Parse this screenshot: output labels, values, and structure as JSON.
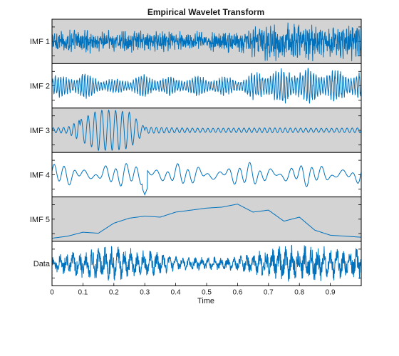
{
  "chart_data": {
    "type": "line",
    "title": "Empirical Wavelet Transform",
    "xlabel": "Time",
    "xlim": [
      0,
      1
    ],
    "xticks": [
      "0",
      "0.1",
      "0.2",
      "0.3",
      "0.4",
      "0.5",
      "0.6",
      "0.7",
      "0.8",
      "0.9"
    ],
    "grid": false,
    "legend": "none",
    "colors": {
      "line": "#0072BD",
      "shaded_background": "#D3D3D3",
      "plain_background": "#FFFFFF",
      "axes": "#000000"
    },
    "panels": [
      {
        "label": "IMF 1",
        "shaded": true,
        "description": "broadband high-frequency noise; amplitude larger after t=0.7",
        "x": [
          0,
          0.1,
          0.2,
          0.3,
          0.4,
          0.5,
          0.6,
          0.7,
          0.8,
          0.9,
          1.0
        ],
        "envelope": [
          0.55,
          0.6,
          0.55,
          0.55,
          0.5,
          0.5,
          0.55,
          0.95,
          1.0,
          0.9,
          0.9
        ]
      },
      {
        "label": "IMF 2",
        "shaded": false,
        "description": "high-frequency oscillation with beat-like amplitude bursts; strongest after t=0.7",
        "x": [
          0,
          0.1,
          0.2,
          0.3,
          0.4,
          0.5,
          0.6,
          0.7,
          0.8,
          0.9,
          1.0
        ],
        "envelope": [
          0.55,
          0.7,
          0.35,
          0.6,
          0.45,
          0.55,
          0.45,
          0.9,
          1.0,
          0.85,
          0.8
        ]
      },
      {
        "label": "IMF 3",
        "shaded": true,
        "description": "large burst between t=0.1 and t=0.3, small steady oscillation elsewhere",
        "x": [
          0,
          0.05,
          0.1,
          0.15,
          0.2,
          0.25,
          0.3,
          0.5,
          0.7,
          0.9,
          1.0
        ],
        "envelope": [
          0.12,
          0.15,
          0.6,
          1.0,
          1.0,
          0.9,
          0.15,
          0.1,
          0.12,
          0.1,
          0.12
        ]
      },
      {
        "label": "IMF 4",
        "shaded": false,
        "description": "medium-frequency oscillation with a sharp spike near t=0.3",
        "x": [
          0,
          0.1,
          0.2,
          0.25,
          0.3,
          0.35,
          0.5,
          0.6,
          0.7,
          0.9,
          1.0
        ],
        "envelope": [
          0.45,
          0.5,
          0.45,
          0.5,
          1.0,
          0.45,
          0.4,
          0.45,
          0.55,
          0.4,
          0.45
        ]
      },
      {
        "label": "IMF 5",
        "shaded": true,
        "description": "slow trend",
        "x": [
          0,
          0.05,
          0.1,
          0.15,
          0.2,
          0.25,
          0.3,
          0.35,
          0.4,
          0.45,
          0.5,
          0.55,
          0.6,
          0.65,
          0.7,
          0.75,
          0.8,
          0.85,
          0.9,
          0.95,
          1.0
        ],
        "y": [
          -0.95,
          -0.85,
          -0.65,
          -0.7,
          -0.2,
          0.05,
          0.15,
          0.1,
          0.35,
          0.45,
          0.55,
          0.6,
          0.75,
          0.35,
          0.45,
          -0.1,
          0.1,
          -0.55,
          -0.8,
          -0.85,
          -0.9
        ]
      },
      {
        "label": "Data",
        "shaded": false,
        "description": "original signal; strong bursts near t=0.1-0.3 and after t=0.7",
        "x": [
          0,
          0.1,
          0.2,
          0.3,
          0.4,
          0.5,
          0.6,
          0.7,
          0.8,
          0.9,
          1.0
        ],
        "envelope": [
          0.4,
          0.8,
          0.9,
          0.75,
          0.35,
          0.35,
          0.35,
          0.85,
          1.0,
          0.85,
          0.8
        ]
      }
    ]
  }
}
